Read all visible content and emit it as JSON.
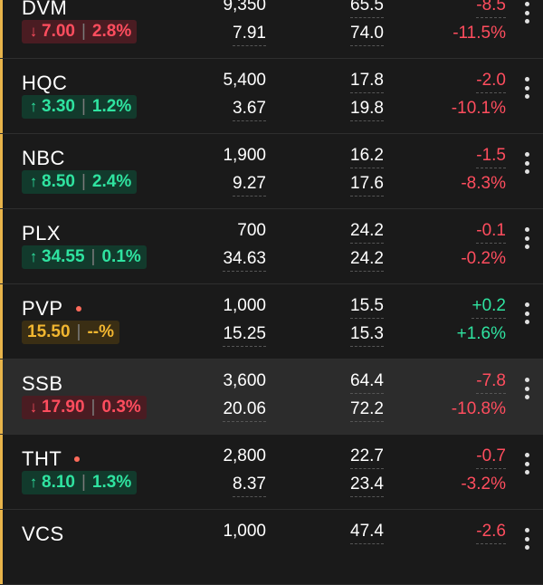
{
  "rows": [
    {
      "symbol": "DVM",
      "dot": false,
      "dir": "down",
      "arrow": "↓",
      "change": "7.00",
      "pct": "2.8%",
      "vol": "9,350",
      "price": "7.91",
      "c3a": "65.5",
      "c3b": "74.0",
      "c4a": "-8.5",
      "c4b": "-11.5%",
      "c4sign": "neg",
      "highlight": false
    },
    {
      "symbol": "HQC",
      "dot": false,
      "dir": "up",
      "arrow": "↑",
      "change": "3.30",
      "pct": "1.2%",
      "vol": "5,400",
      "price": "3.67",
      "c3a": "17.8",
      "c3b": "19.8",
      "c4a": "-2.0",
      "c4b": "-10.1%",
      "c4sign": "neg",
      "highlight": false
    },
    {
      "symbol": "NBC",
      "dot": false,
      "dir": "up",
      "arrow": "↑",
      "change": "8.50",
      "pct": "2.4%",
      "vol": "1,900",
      "price": "9.27",
      "c3a": "16.2",
      "c3b": "17.6",
      "c4a": "-1.5",
      "c4b": "-8.3%",
      "c4sign": "neg",
      "highlight": false
    },
    {
      "symbol": "PLX",
      "dot": false,
      "dir": "up",
      "arrow": "↑",
      "change": "34.55",
      "pct": "0.1%",
      "vol": "700",
      "price": "34.63",
      "c3a": "24.2",
      "c3b": "24.2",
      "c4a": "-0.1",
      "c4b": "-0.2%",
      "c4sign": "neg",
      "highlight": false
    },
    {
      "symbol": "PVP",
      "dot": true,
      "dir": "ref",
      "arrow": "",
      "change": "15.50",
      "pct": "--%",
      "vol": "1,000",
      "price": "15.25",
      "c3a": "15.5",
      "c3b": "15.3",
      "c4a": "+0.2",
      "c4b": "+1.6%",
      "c4sign": "pos",
      "highlight": false
    },
    {
      "symbol": "SSB",
      "dot": false,
      "dir": "down",
      "arrow": "↓",
      "change": "17.90",
      "pct": "0.3%",
      "vol": "3,600",
      "price": "20.06",
      "c3a": "64.4",
      "c3b": "72.2",
      "c4a": "-7.8",
      "c4b": "-10.8%",
      "c4sign": "neg",
      "highlight": true
    },
    {
      "symbol": "THT",
      "dot": true,
      "dir": "up",
      "arrow": "↑",
      "change": "8.10",
      "pct": "1.3%",
      "vol": "2,800",
      "price": "8.37",
      "c3a": "22.7",
      "c3b": "23.4",
      "c4a": "-0.7",
      "c4b": "-3.2%",
      "c4sign": "neg",
      "highlight": false
    },
    {
      "symbol": "VCS",
      "dot": false,
      "dir": "down",
      "arrow": "↓",
      "change": "",
      "pct": "",
      "vol": "1,000",
      "price": "",
      "c3a": "47.4",
      "c3b": "",
      "c4a": "-2.6",
      "c4b": "",
      "c4sign": "neg",
      "highlight": false
    }
  ]
}
